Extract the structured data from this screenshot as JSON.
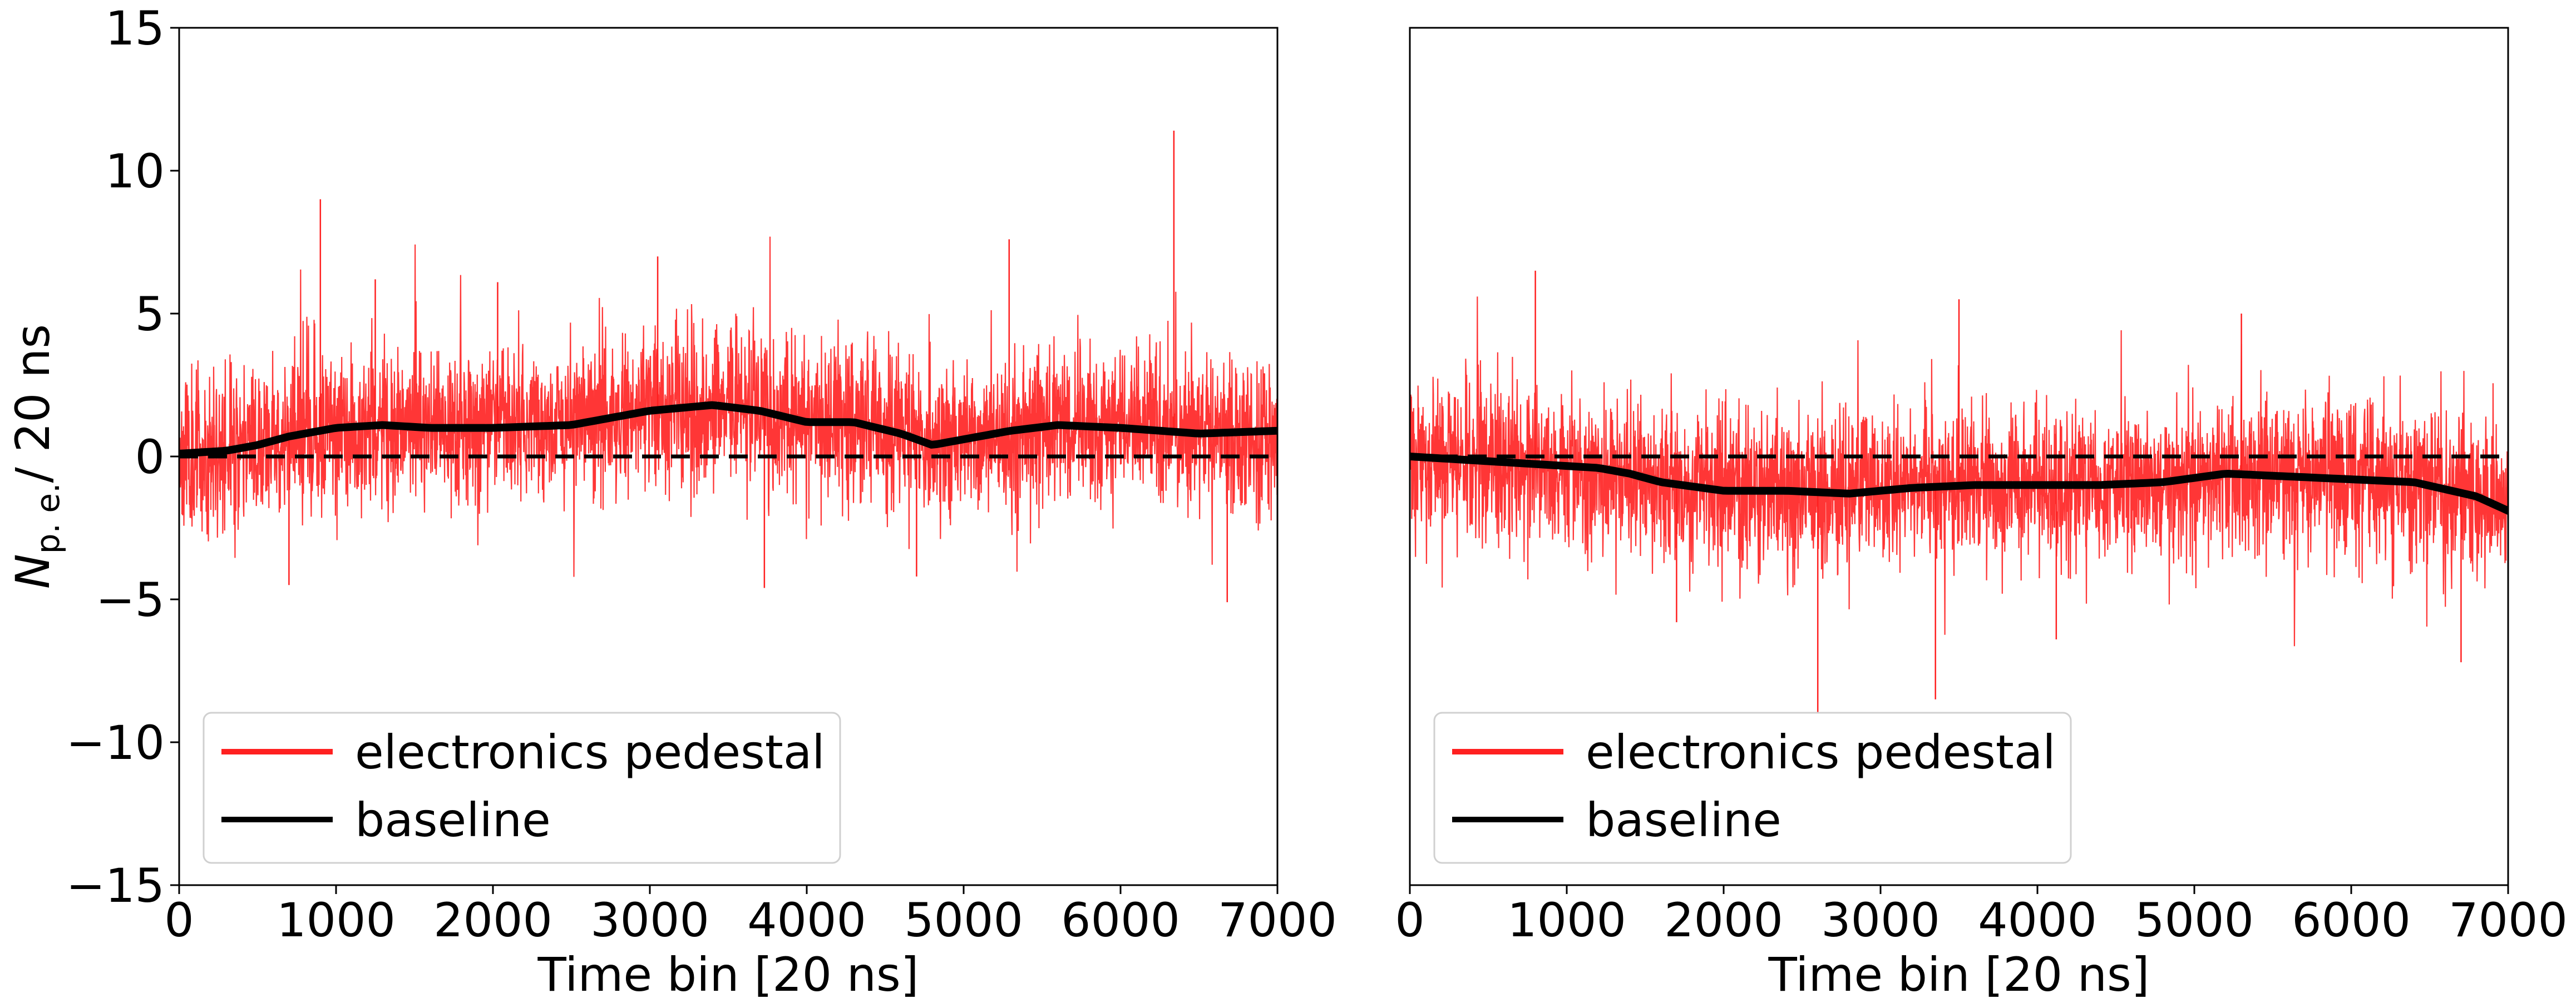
{
  "chart_data": [
    {
      "type": "line",
      "panel": "left",
      "xlabel": "Time bin [20 ns]",
      "ylabel_main": "N",
      "ylabel_sub": "p. e.",
      "ylabel_unit": "/ 20 ns",
      "xlim": [
        0,
        7000
      ],
      "ylim": [
        -15,
        15
      ],
      "xticks": [
        0,
        1000,
        2000,
        3000,
        4000,
        5000,
        6000,
        7000
      ],
      "yticks": [
        -15,
        -10,
        -5,
        0,
        5,
        10,
        15
      ],
      "ytick_labels": [
        "−15",
        "−10",
        "−5",
        "0",
        "5",
        "10",
        "15"
      ],
      "legend_position": "lower-left",
      "reference_line": {
        "y": 0,
        "style": "dashed",
        "color": "#000000"
      },
      "series": [
        {
          "name": "electronics pedestal",
          "color": "#ff2020",
          "noise": {
            "seed": 11,
            "spread": 1.35,
            "points": 3500
          },
          "spikes": [
            [
              900,
              9.0
            ],
            [
              1250,
              6.2
            ],
            [
              2030,
              6.1
            ],
            [
              3050,
              7.0
            ],
            [
              5290,
              7.6
            ],
            [
              6340,
              11.4
            ],
            [
              700,
              -4.5
            ],
            [
              3730,
              -4.6
            ],
            [
              6680,
              -5.1
            ],
            [
              4700,
              -4.2
            ]
          ]
        },
        {
          "name": "baseline",
          "color": "#000000",
          "x": [
            0,
            300,
            500,
            700,
            1000,
            1300,
            1600,
            2000,
            2500,
            3000,
            3400,
            3700,
            4000,
            4300,
            4600,
            4800,
            5000,
            5300,
            5600,
            6000,
            6500,
            7000
          ],
          "y": [
            0.1,
            0.2,
            0.4,
            0.7,
            1.0,
            1.1,
            1.0,
            1.0,
            1.1,
            1.6,
            1.8,
            1.6,
            1.2,
            1.2,
            0.8,
            0.4,
            0.6,
            0.9,
            1.1,
            1.0,
            0.8,
            0.9
          ]
        }
      ]
    },
    {
      "type": "line",
      "panel": "right",
      "xlabel": "Time bin [20 ns]",
      "xlim": [
        0,
        7000
      ],
      "ylim": [
        -15,
        15
      ],
      "xticks": [
        0,
        1000,
        2000,
        3000,
        4000,
        5000,
        6000,
        7000
      ],
      "legend_position": "lower-left",
      "reference_line": {
        "y": 0,
        "style": "dashed",
        "color": "#000000"
      },
      "series": [
        {
          "name": "electronics pedestal",
          "color": "#ff2020",
          "noise": {
            "seed": 29,
            "spread": 1.35,
            "points": 3500
          },
          "spikes": [
            [
              800,
              6.5
            ],
            [
              3500,
              5.5
            ],
            [
              5300,
              5.0
            ],
            [
              2600,
              -9.0
            ],
            [
              3350,
              -8.5
            ],
            [
              4120,
              -6.4
            ],
            [
              6700,
              -7.2
            ],
            [
              7000,
              -8.5
            ],
            [
              1700,
              -5.8
            ]
          ]
        },
        {
          "name": "baseline",
          "color": "#000000",
          "x": [
            0,
            300,
            600,
            900,
            1200,
            1400,
            1600,
            2000,
            2400,
            2800,
            3200,
            3600,
            4000,
            4400,
            4800,
            5200,
            5600,
            6000,
            6400,
            6800,
            7000
          ],
          "y": [
            0.0,
            -0.1,
            -0.2,
            -0.3,
            -0.4,
            -0.6,
            -0.9,
            -1.2,
            -1.2,
            -1.3,
            -1.1,
            -1.0,
            -1.0,
            -1.0,
            -0.9,
            -0.6,
            -0.7,
            -0.8,
            -0.9,
            -1.4,
            -1.9
          ]
        }
      ]
    }
  ]
}
